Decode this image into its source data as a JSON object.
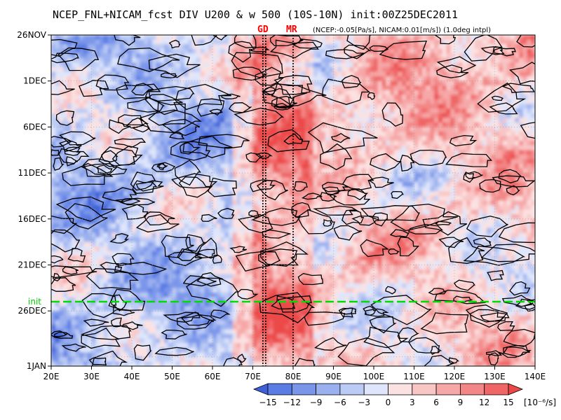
{
  "title": "NCEP_FNL+NICAM_fcst DIV U200 & w 500 (10S-10N) init:00Z25DEC2011",
  "subtitle": "(NCEP:-0.05[Pa/s], NICAM:0.01[m/s]) (1.0deg intpl)",
  "colors": {
    "negative": "#4a6fe0",
    "positive": "#f06262",
    "contour": "#000000",
    "init_line": "#00dd00",
    "site_text": "#ff0000"
  },
  "chart_data": {
    "type": "heatmap",
    "title": "NCEP_FNL+NICAM_fcst DIV U200 & w 500 (10S-10N) init:00Z25DEC2011",
    "x_range": [
      20,
      140
    ],
    "x_ticks": [
      "20E",
      "30E",
      "40E",
      "50E",
      "60E",
      "70E",
      "80E",
      "90E",
      "100E",
      "110E",
      "120E",
      "130E",
      "140E"
    ],
    "y_ticks": [
      "26NOV",
      "1DEC",
      "6DEC",
      "11DEC",
      "16DEC",
      "21DEC",
      "26DEC",
      "1JAN"
    ],
    "y_range": [
      "26NOV2011",
      "1JAN2012"
    ],
    "init_line": {
      "label": "init",
      "date": "25DEC2011"
    },
    "site_lines": [
      {
        "label": "GD",
        "x_values": [
          72.5,
          73.2
        ]
      },
      {
        "label": "MR",
        "x_values": [
          80
        ]
      }
    ],
    "colorbar": {
      "levels": [
        "-15",
        "-12",
        "-9",
        "-6",
        "-3",
        "0",
        "3",
        "6",
        "9",
        "12",
        "15"
      ],
      "unit": "[10⁻⁶/s]",
      "colors": [
        "#3e5fd6",
        "#5a7ce4",
        "#7a96ea",
        "#9bb1ef",
        "#bccbf5",
        "#dfe6fb",
        "#fbe2e2",
        "#f9c6c6",
        "#f6a7a7",
        "#f38686",
        "#f06565",
        "#ec4848"
      ]
    },
    "shading_note": "positive (red) shading dominates east of 70E; blue west of 70E"
  }
}
